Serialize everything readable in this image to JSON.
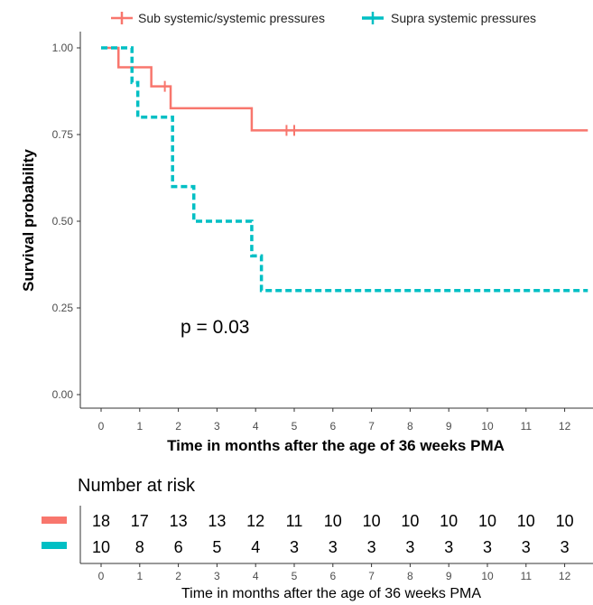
{
  "chart_data": [
    {
      "type": "line",
      "subtype": "kaplan-meier survival curve",
      "title": "",
      "xlabel": "Time in months after the age of 36 weeks PMA",
      "ylabel": "Survival probability",
      "xlim": [
        -0.6,
        12.6
      ],
      "ylim": [
        0,
        1.0
      ],
      "x_ticks": [
        "0",
        "1",
        "2",
        "3",
        "4",
        "5",
        "6",
        "7",
        "8",
        "9",
        "10",
        "11",
        "12"
      ],
      "y_ticks": [
        "0.00",
        "0.25",
        "0.50",
        "0.75",
        "1.00"
      ],
      "grid": false,
      "legend_position": "top",
      "annotation": "p = 0.03",
      "series": [
        {
          "name": "Sub systemic/systemic pressures",
          "color": "#f8766d",
          "line_style": "solid",
          "steps": [
            {
              "x": 0,
              "y": 1.0
            },
            {
              "x": 0.45,
              "y": 0.944
            },
            {
              "x": 1.3,
              "y": 0.889
            },
            {
              "x": 1.8,
              "y": 0.826
            },
            {
              "x": 3.9,
              "y": 0.762
            }
          ],
          "x_end": 12.6,
          "censor_marks": [
            {
              "x": 1.65,
              "y": 0.889
            },
            {
              "x": 4.8,
              "y": 0.762
            },
            {
              "x": 5.0,
              "y": 0.762
            }
          ]
        },
        {
          "name": "Supra systemic pressures",
          "color": "#00bfc4",
          "line_style": "dashed",
          "steps": [
            {
              "x": 0,
              "y": 1.0
            },
            {
              "x": 0.8,
              "y": 0.9
            },
            {
              "x": 0.95,
              "y": 0.8
            },
            {
              "x": 1.85,
              "y": 0.6
            },
            {
              "x": 2.4,
              "y": 0.5
            },
            {
              "x": 3.9,
              "y": 0.4
            },
            {
              "x": 4.15,
              "y": 0.3
            }
          ],
          "x_end": 12.6,
          "censor_marks": []
        }
      ]
    },
    {
      "type": "table",
      "title": "Number at risk",
      "xlabel": "Time in months after the age of 36 weeks PMA",
      "columns": [
        "0",
        "1",
        "2",
        "3",
        "4",
        "5",
        "6",
        "7",
        "8",
        "9",
        "10",
        "11",
        "12"
      ],
      "rows": [
        {
          "color": "#f8766d",
          "values": [
            18,
            17,
            13,
            13,
            12,
            11,
            10,
            10,
            10,
            10,
            10,
            10,
            10
          ]
        },
        {
          "color": "#00bfc4",
          "values": [
            10,
            8,
            6,
            5,
            4,
            3,
            3,
            3,
            3,
            3,
            3,
            3,
            3
          ]
        }
      ]
    }
  ]
}
